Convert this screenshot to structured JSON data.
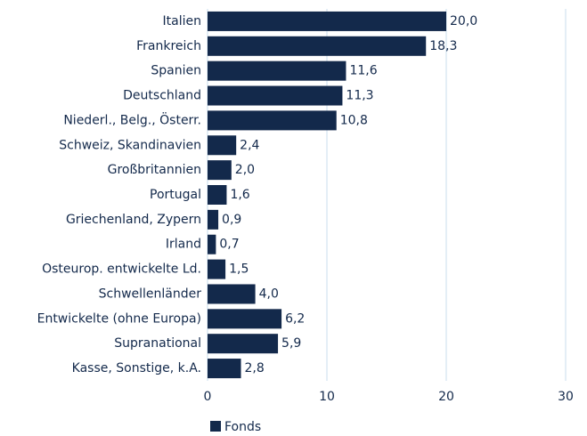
{
  "chart_data": {
    "type": "bar",
    "orientation": "horizontal",
    "categories": [
      "Italien",
      "Frankreich",
      "Spanien",
      "Deutschland",
      "Niederl., Belg., Österr.",
      "Schweiz, Skandinavien",
      "Großbritannien",
      "Portugal",
      "Griechenland, Zypern",
      "Irland",
      "Osteurop. entwickelte Ld.",
      "Schwellenländer",
      "Entwickelte (ohne Europa)",
      "Supranational",
      "Kasse, Sonstige, k.A."
    ],
    "series": [
      {
        "name": "Fonds",
        "color": "#13294b",
        "values": [
          20.0,
          18.3,
          11.6,
          11.3,
          10.8,
          2.4,
          2.0,
          1.6,
          0.9,
          0.7,
          1.5,
          4.0,
          6.2,
          5.9,
          2.8
        ],
        "value_labels": [
          "20,0",
          "18,3",
          "11,6",
          "11,3",
          "10,8",
          "2,4",
          "2,0",
          "1,6",
          "0,9",
          "0,7",
          "1,5",
          "4,0",
          "6,2",
          "5,9",
          "2,8"
        ]
      }
    ],
    "xlim": [
      0,
      30
    ],
    "xticks": [
      0,
      10,
      20,
      30
    ],
    "grid": true,
    "legend": "bottom-left"
  }
}
